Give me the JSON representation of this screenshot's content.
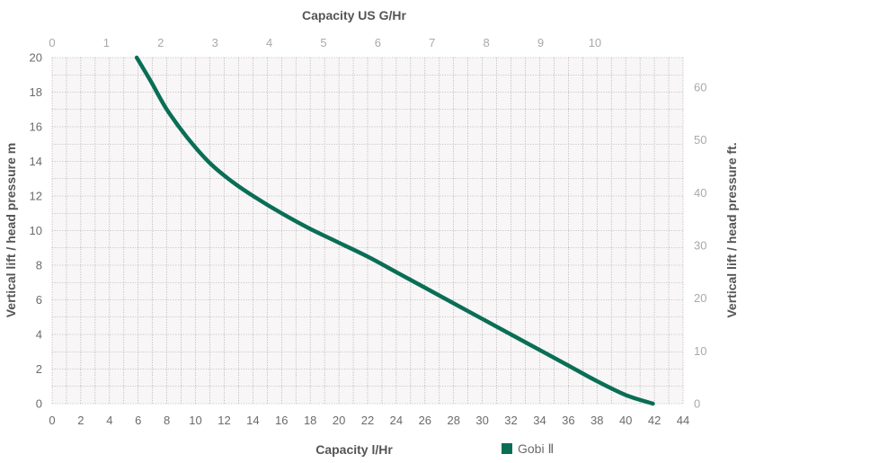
{
  "chart_data": {
    "type": "line",
    "xlabel_bottom": "Capacity l/Hr",
    "xlabel_top": "Capacity US G/Hr",
    "ylabel_left": "Vertical lift / head pressure m",
    "ylabel_right": "Vertical lift / head pressure ft.",
    "x_bottom_range": [
      0,
      44
    ],
    "x_bottom_ticks": [
      "0",
      "2",
      "4",
      "6",
      "8",
      "10",
      "12",
      "14",
      "16",
      "18",
      "20",
      "22",
      "24",
      "26",
      "28",
      "30",
      "32",
      "34",
      "36",
      "38",
      "40",
      "42",
      "44"
    ],
    "x_top_ticks": [
      "0",
      "1",
      "2",
      "3",
      "4",
      "5",
      "6",
      "7",
      "8",
      "9",
      "10"
    ],
    "y_left_range": [
      0,
      20
    ],
    "y_left_ticks": [
      "0",
      "2",
      "4",
      "6",
      "8",
      "10",
      "12",
      "14",
      "16",
      "18",
      "20"
    ],
    "y_right_ticks": [
      "0",
      "10",
      "20",
      "30",
      "40",
      "50",
      "60"
    ],
    "grid": true,
    "legend_position": "bottom",
    "series": [
      {
        "name": "Gobi Ⅱ",
        "color": "#0a6e55",
        "x": [
          5.9,
          6.9,
          8,
          9.4,
          11,
          12.6,
          14.2,
          16,
          18,
          20,
          22,
          24,
          26,
          28,
          30,
          32,
          34,
          36,
          38,
          40,
          41.9
        ],
        "y": [
          20,
          18.6,
          17,
          15.4,
          13.9,
          12.8,
          11.9,
          11,
          10.1,
          9.3,
          8.5,
          7.6,
          6.7,
          5.8,
          4.9,
          4,
          3.1,
          2.2,
          1.3,
          0.5,
          0
        ]
      }
    ]
  }
}
